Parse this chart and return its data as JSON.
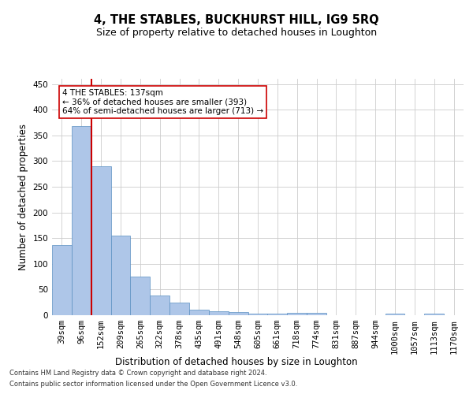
{
  "title": "4, THE STABLES, BUCKHURST HILL, IG9 5RQ",
  "subtitle": "Size of property relative to detached houses in Loughton",
  "xlabel": "Distribution of detached houses by size in Loughton",
  "ylabel": "Number of detached properties",
  "categories": [
    "39sqm",
    "96sqm",
    "152sqm",
    "209sqm",
    "265sqm",
    "322sqm",
    "378sqm",
    "435sqm",
    "491sqm",
    "548sqm",
    "605sqm",
    "661sqm",
    "718sqm",
    "774sqm",
    "831sqm",
    "887sqm",
    "944sqm",
    "1000sqm",
    "1057sqm",
    "1113sqm",
    "1170sqm"
  ],
  "values": [
    136,
    368,
    290,
    155,
    75,
    38,
    25,
    10,
    8,
    6,
    3,
    3,
    5,
    5,
    0,
    0,
    0,
    3,
    0,
    3,
    0
  ],
  "bar_color": "#aec6e8",
  "bar_edge_color": "#5a8fc2",
  "vline_x": 1.5,
  "vline_color": "#cc0000",
  "annotation_text": "4 THE STABLES: 137sqm\n← 36% of detached houses are smaller (393)\n64% of semi-detached houses are larger (713) →",
  "annotation_box_color": "#ffffff",
  "annotation_box_edge": "#cc0000",
  "ylim": [
    0,
    460
  ],
  "yticks": [
    0,
    50,
    100,
    150,
    200,
    250,
    300,
    350,
    400,
    450
  ],
  "title_fontsize": 10.5,
  "subtitle_fontsize": 9,
  "xlabel_fontsize": 8.5,
  "ylabel_fontsize": 8.5,
  "tick_fontsize": 7.5,
  "annotation_fontsize": 7.5,
  "footer_line1": "Contains HM Land Registry data © Crown copyright and database right 2024.",
  "footer_line2": "Contains public sector information licensed under the Open Government Licence v3.0.",
  "footer_fontsize": 6.0,
  "bg_color": "#ffffff",
  "grid_color": "#cccccc"
}
